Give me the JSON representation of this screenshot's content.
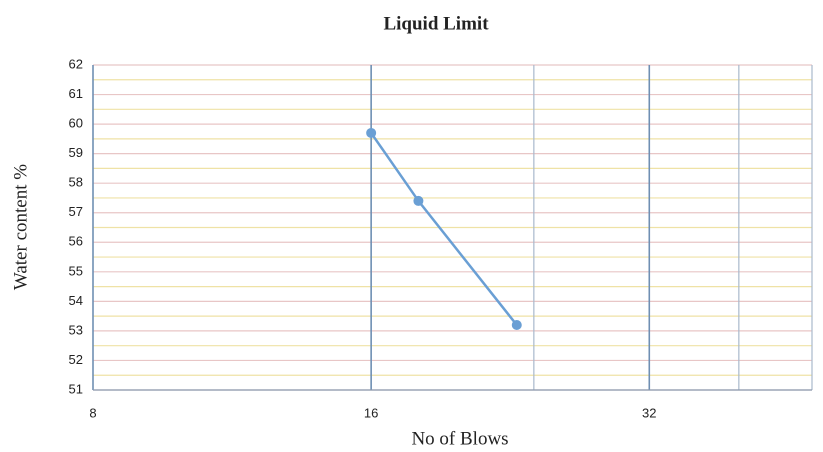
{
  "chart_data": {
    "type": "line",
    "title": "Liquid Limit",
    "x_label": "No of Blows",
    "y_label": "Water content %",
    "x": [
      16,
      18,
      23
    ],
    "series": [
      {
        "name": "Water content",
        "color": "#6a9fd4",
        "values": [
          59.7,
          57.4,
          53.2
        ]
      }
    ],
    "xlim": [
      8,
      48
    ],
    "xticks": [
      8,
      16,
      32
    ],
    "xminor": [
      24,
      40
    ],
    "xlog": true,
    "ylim": [
      51,
      62
    ],
    "yticks": [
      51,
      52,
      53,
      54,
      55,
      56,
      57,
      58,
      59,
      60,
      61,
      62
    ],
    "grid": true
  }
}
